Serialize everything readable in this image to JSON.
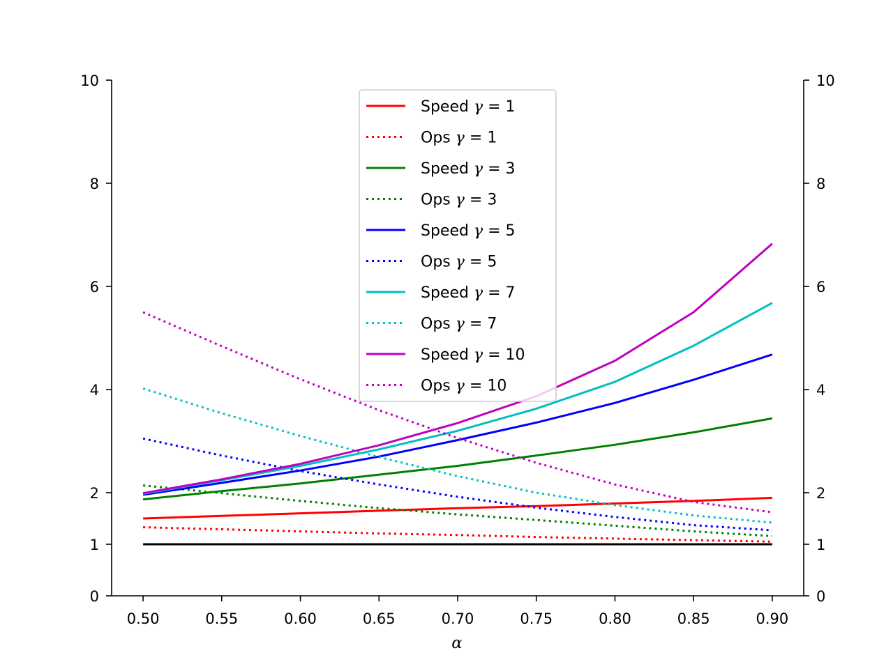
{
  "chart_data": {
    "type": "line",
    "xlabel": "α",
    "ylabel": "",
    "xlim": [
      0.48,
      0.92
    ],
    "ylim": [
      0,
      10
    ],
    "xticks": [
      0.5,
      0.55,
      0.6,
      0.65,
      0.7,
      0.75,
      0.8,
      0.85,
      0.9
    ],
    "xtick_labels": [
      "0.50",
      "0.55",
      "0.60",
      "0.65",
      "0.70",
      "0.75",
      "0.80",
      "0.85",
      "0.90"
    ],
    "yticks": [
      0,
      1,
      2,
      4,
      6,
      8,
      10
    ],
    "ytick_labels": [
      "0",
      "1",
      "2",
      "4",
      "6",
      "8",
      "10"
    ],
    "secondary_y_axis": true,
    "legend_position": "upper-center",
    "x": [
      0.5,
      0.55,
      0.6,
      0.65,
      0.7,
      0.75,
      0.8,
      0.85,
      0.9
    ],
    "series": [
      {
        "name": "Speed γ = 1",
        "name_prefix": "Speed",
        "gamma": "1",
        "color": "#ff0000",
        "style": "solid",
        "values": [
          1.5,
          1.55,
          1.6,
          1.65,
          1.7,
          1.74,
          1.79,
          1.84,
          1.9
        ]
      },
      {
        "name": "Ops γ = 1",
        "name_prefix": "Ops",
        "gamma": "1",
        "color": "#ff0000",
        "style": "dotted",
        "values": [
          1.33,
          1.29,
          1.25,
          1.21,
          1.18,
          1.14,
          1.11,
          1.08,
          1.05
        ]
      },
      {
        "name": "Speed γ = 3",
        "name_prefix": "Speed",
        "gamma": "3",
        "color": "#008000",
        "style": "solid",
        "values": [
          1.87,
          2.03,
          2.18,
          2.35,
          2.52,
          2.72,
          2.93,
          3.17,
          3.44
        ]
      },
      {
        "name": "Ops γ = 3",
        "name_prefix": "Ops",
        "gamma": "3",
        "color": "#008000",
        "style": "dotted",
        "values": [
          2.14,
          1.99,
          1.84,
          1.7,
          1.58,
          1.47,
          1.36,
          1.25,
          1.16
        ]
      },
      {
        "name": "Speed γ = 5",
        "name_prefix": "Speed",
        "gamma": "5",
        "color": "#0000ff",
        "style": "solid",
        "values": [
          1.96,
          2.19,
          2.43,
          2.7,
          3.02,
          3.36,
          3.74,
          4.19,
          4.68
        ]
      },
      {
        "name": "Ops γ = 5",
        "name_prefix": "Ops",
        "gamma": "5",
        "color": "#0000ff",
        "style": "dotted",
        "values": [
          3.05,
          2.72,
          2.42,
          2.16,
          1.92,
          1.71,
          1.53,
          1.37,
          1.27
        ]
      },
      {
        "name": "Speed γ = 7",
        "name_prefix": "Speed",
        "gamma": "7",
        "color": "#00bfbf",
        "style": "solid",
        "values": [
          1.98,
          2.24,
          2.52,
          2.84,
          3.2,
          3.63,
          4.15,
          4.85,
          5.68
        ]
      },
      {
        "name": "Ops γ = 7",
        "name_prefix": "Ops",
        "gamma": "7",
        "color": "#00bfbf",
        "style": "dotted",
        "values": [
          4.02,
          3.54,
          3.1,
          2.69,
          2.32,
          2.0,
          1.76,
          1.56,
          1.42
        ]
      },
      {
        "name": "Speed γ = 10",
        "name_prefix": "Speed",
        "gamma": "10",
        "color": "#bf00bf",
        "style": "solid",
        "values": [
          1.99,
          2.26,
          2.56,
          2.92,
          3.35,
          3.87,
          4.56,
          5.5,
          6.83
        ]
      },
      {
        "name": "Ops γ = 10",
        "name_prefix": "Ops",
        "gamma": "10",
        "color": "#bf00bf",
        "style": "dotted",
        "values": [
          5.5,
          4.84,
          4.2,
          3.6,
          3.06,
          2.58,
          2.16,
          1.82,
          1.62
        ]
      }
    ],
    "reference_line": {
      "y": 1,
      "color": "#000000",
      "style": "solid"
    }
  }
}
